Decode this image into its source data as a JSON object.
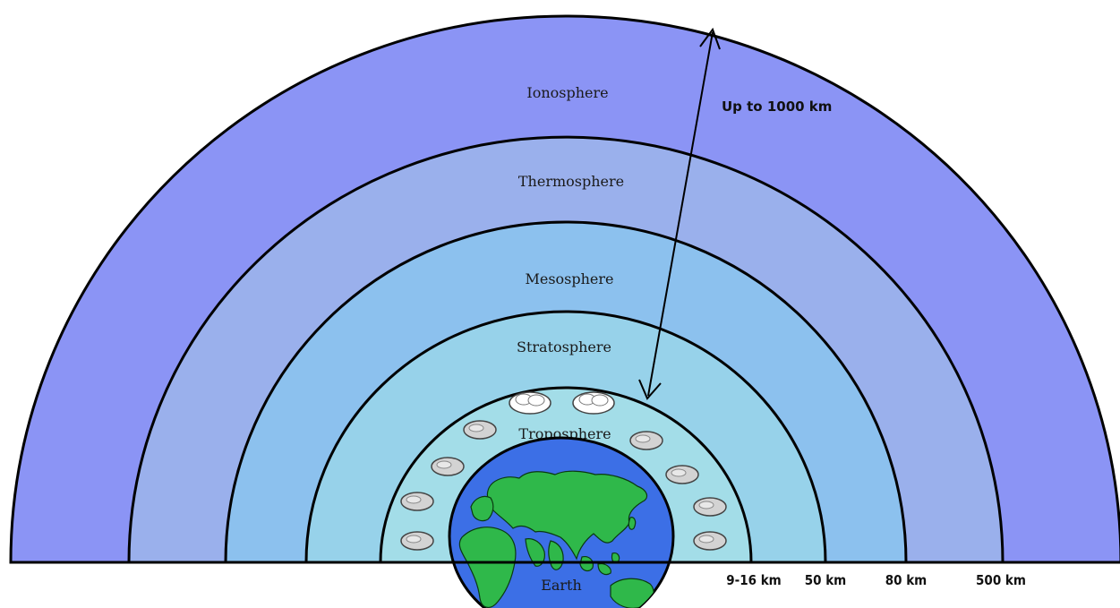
{
  "diagram": {
    "layers": [
      {
        "name": "Ionosphere",
        "color": "#8b94f5"
      },
      {
        "name": "Thermosphere",
        "color": "#9ab0ec"
      },
      {
        "name": "Mesosphere",
        "color": "#8cc1ee"
      },
      {
        "name": "Stratosphere",
        "color": "#97d2ea"
      },
      {
        "name": "Troposphere",
        "color": "#a3dde8"
      }
    ],
    "earth": {
      "label": "Earth",
      "ocean_color": "#3c6fe6",
      "land_color": "#2fb84a"
    },
    "arrow_label": "Up to 1000 km",
    "distance_labels": [
      "9-16 km",
      "50 km",
      "80 km",
      "500 km"
    ],
    "icons": {
      "cloud": "cloud-icon"
    }
  }
}
